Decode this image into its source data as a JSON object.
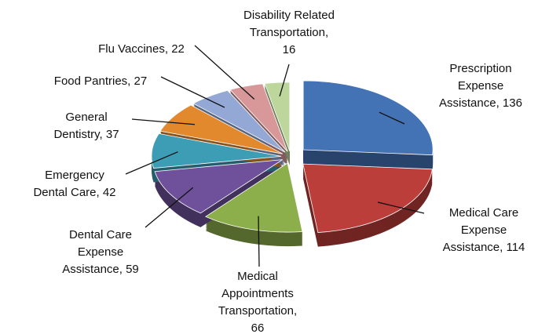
{
  "chart_data": {
    "type": "pie",
    "categories": [
      "Prescription Expense Assistance,",
      "Medical Care Expense Assistance,",
      "Medical Appointments Transportation,",
      "Dental Care Expense Assistance,",
      "Emergency Dental Care,",
      "General Dentistry,",
      "Food Pantries,",
      "Flu Vaccines,",
      "Disability Related Transportation,"
    ],
    "values": [
      136,
      114,
      66,
      59,
      42,
      37,
      27,
      22,
      16
    ],
    "colors": [
      "#4372b5",
      "#bb3e3b",
      "#8cae4b",
      "#6e519a",
      "#3c9db5",
      "#e2882d",
      "#93a8d4",
      "#d8989a",
      "#bdd69b"
    ]
  }
}
